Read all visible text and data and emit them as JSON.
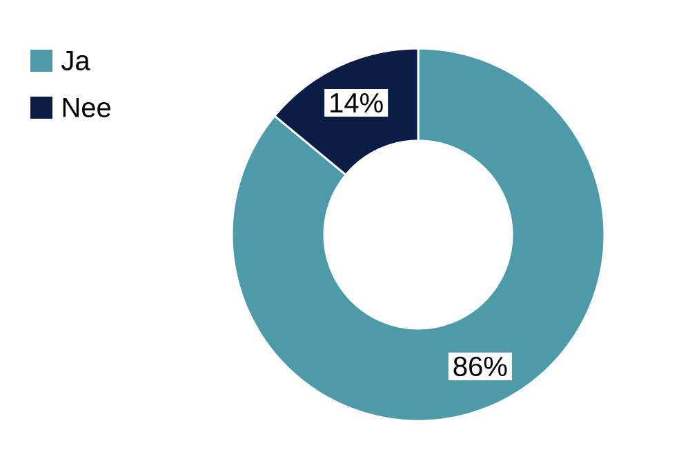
{
  "chart_data": {
    "type": "donut",
    "categories": [
      "Ja",
      "Nee"
    ],
    "values": [
      86,
      14
    ],
    "colors": [
      "#4e9aa9",
      "#0b1c45"
    ],
    "value_labels": [
      "86%",
      "14%"
    ],
    "legend": "top left"
  }
}
